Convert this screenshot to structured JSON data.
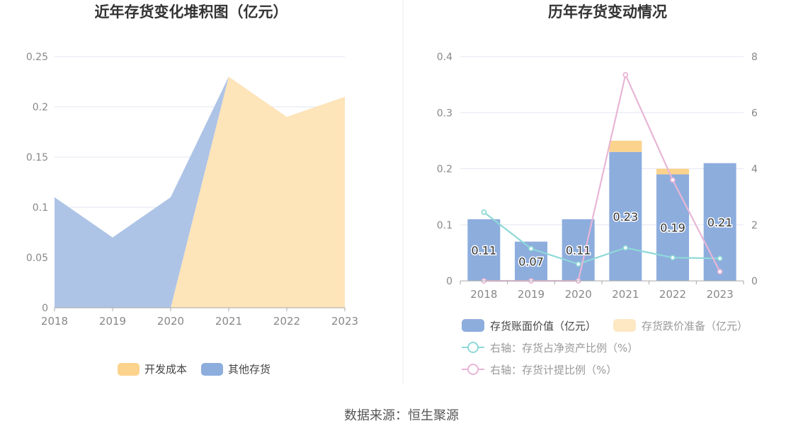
{
  "colors": {
    "orange": "#fcd38c",
    "blue": "#8daddd",
    "blue_area": "#aec4e6",
    "orange_area": "#fde4b9",
    "teal": "#8fd8d8",
    "pink": "#e8b6d6",
    "grid": "#e3e6f3",
    "axis_text": "#888888",
    "title": "#333333",
    "divider": "#eeeeee"
  },
  "chart_data": [
    {
      "type": "area",
      "title": "近年存货变化堆积图（亿元）",
      "categories": [
        "2018",
        "2019",
        "2020",
        "2021",
        "2022",
        "2023"
      ],
      "ylim": [
        0,
        0.25
      ],
      "y_ticks": [
        "0",
        "0.05",
        "0.1",
        "0.15",
        "0.2",
        "0.25"
      ],
      "stacked": true,
      "legend_position": "bottom",
      "series": [
        {
          "name": "开发成本",
          "color": "#fde4b9",
          "legend_color": "#fcd38c",
          "values": [
            0,
            0,
            0,
            0.23,
            0.19,
            0.21
          ]
        },
        {
          "name": "其他存货",
          "color": "#aec4e6",
          "legend_color": "#8daddd",
          "values": [
            0.11,
            0.07,
            0.11,
            0,
            0,
            0
          ]
        }
      ]
    },
    {
      "type": "bar",
      "title": "历年存货变动情况",
      "categories": [
        "2018",
        "2019",
        "2020",
        "2021",
        "2022",
        "2023"
      ],
      "ylim": [
        0,
        0.4
      ],
      "y_ticks": [
        "0",
        "0.1",
        "0.2",
        "0.3",
        "0.4"
      ],
      "y2lim": [
        0,
        8
      ],
      "y2_ticks": [
        "0",
        "2",
        "4",
        "6",
        "8"
      ],
      "legend_position": "bottom",
      "bar_labels": [
        "0.11",
        "0.07",
        "0.11",
        "0.23",
        "0.19",
        "0.21"
      ],
      "series": [
        {
          "name": "存货账面价值（亿元）",
          "kind": "bar",
          "stack": "a",
          "color": "#8daddd",
          "values": [
            0.11,
            0.07,
            0.11,
            0.23,
            0.19,
            0.21
          ]
        },
        {
          "name": "存货跌价准备（亿元）",
          "kind": "bar",
          "stack": "a",
          "color": "#fcd38c",
          "legend_color": "#fde8c4",
          "values": [
            0,
            0,
            0,
            0.02,
            0.01,
            0
          ]
        },
        {
          "name": "右轴：存货占净资产比例（%）",
          "kind": "line",
          "axis": "right",
          "color": "#8fd8d8",
          "values": [
            2.45,
            1.15,
            0.6,
            1.18,
            0.83,
            0.8
          ]
        },
        {
          "name": "右轴：存货计提比例（%）",
          "kind": "line",
          "axis": "right",
          "color": "#e8b6d6",
          "values": [
            0,
            0,
            0,
            7.35,
            3.6,
            0.33
          ]
        }
      ]
    }
  ],
  "footer": {
    "source": "数据来源：恒生聚源"
  }
}
